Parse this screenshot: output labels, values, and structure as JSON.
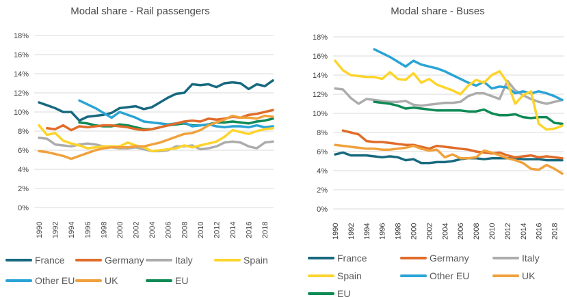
{
  "page": {
    "background": "#ffffff",
    "grid_color": "#d9d9d9",
    "axis_text_color": "#404040",
    "title_color": "#4a4a4a",
    "legend_text_color": "#595959"
  },
  "chart_data": [
    {
      "type": "line",
      "title": "Modal share - Rail passengers",
      "xlabel": "",
      "ylabel": "",
      "ylim": [
        0,
        18
      ],
      "grid": true,
      "legend_position": "bottom",
      "x": [
        1990,
        1991,
        1992,
        1993,
        1994,
        1995,
        1996,
        1997,
        1998,
        1999,
        2000,
        2001,
        2002,
        2003,
        2004,
        2005,
        2006,
        2007,
        2008,
        2009,
        2010,
        2011,
        2012,
        2013,
        2014,
        2015,
        2016,
        2017,
        2018,
        2019
      ],
      "x_tick_labels": [
        "1990",
        "1992",
        "1994",
        "1996",
        "1998",
        "2000",
        "2002",
        "2004",
        "2006",
        "2008",
        "2010",
        "2012",
        "2014",
        "2016",
        "2018"
      ],
      "y_ticks": [
        "0%",
        "2%",
        "4%",
        "6%",
        "8%",
        "10%",
        "12%",
        "14%",
        "16%",
        "18%"
      ],
      "series": [
        {
          "name": "France",
          "color": "#17697F",
          "values": [
            11.0,
            10.7,
            10.4,
            10.0,
            10.0,
            9.1,
            9.5,
            9.6,
            9.7,
            9.9,
            10.4,
            10.5,
            10.6,
            10.3,
            10.5,
            11.0,
            11.5,
            11.9,
            12.0,
            12.9,
            12.8,
            12.9,
            12.6,
            13.0,
            13.1,
            13.0,
            12.4,
            12.9,
            12.7,
            13.3
          ]
        },
        {
          "name": "Germany",
          "color": "#E06C2A",
          "values": [
            null,
            8.3,
            8.2,
            8.6,
            8.1,
            8.5,
            8.4,
            8.5,
            8.6,
            8.6,
            8.5,
            8.4,
            8.2,
            8.1,
            8.2,
            8.4,
            8.6,
            8.8,
            9.0,
            9.1,
            9.0,
            9.3,
            9.2,
            9.3,
            9.5,
            9.4,
            9.7,
            9.8,
            10.0,
            10.2
          ]
        },
        {
          "name": "Italy",
          "color": "#ACACAC",
          "values": [
            7.3,
            7.2,
            6.6,
            6.5,
            6.4,
            6.6,
            6.7,
            6.6,
            6.4,
            6.3,
            6.2,
            6.2,
            6.3,
            6.1,
            5.9,
            5.9,
            6.0,
            6.4,
            6.4,
            6.5,
            6.1,
            6.2,
            6.4,
            6.8,
            6.9,
            6.8,
            6.4,
            6.2,
            6.8,
            6.9
          ]
        },
        {
          "name": "Spain",
          "color": "#FDD42C",
          "values": [
            8.6,
            7.6,
            7.8,
            7.0,
            6.7,
            6.5,
            6.2,
            6.3,
            6.4,
            6.4,
            6.4,
            6.8,
            6.5,
            6.3,
            5.9,
            6.0,
            6.1,
            6.2,
            6.5,
            6.3,
            6.5,
            6.7,
            6.9,
            7.4,
            8.1,
            7.9,
            7.7,
            8.0,
            8.2,
            8.3
          ]
        },
        {
          "name": "Other EU",
          "color": "#2AA4D5",
          "values": [
            null,
            null,
            null,
            null,
            null,
            11.2,
            10.8,
            10.4,
            9.9,
            9.4,
            10.0,
            9.7,
            9.4,
            9.0,
            8.9,
            8.8,
            8.7,
            8.8,
            8.9,
            8.5,
            8.6,
            8.7,
            8.5,
            8.4,
            8.5,
            8.5,
            8.4,
            8.6,
            8.4,
            8.5
          ]
        },
        {
          "name": "UK",
          "color": "#F0A13C",
          "values": [
            5.9,
            5.8,
            5.6,
            5.4,
            5.1,
            5.4,
            5.7,
            6.0,
            6.2,
            6.3,
            6.3,
            6.3,
            6.4,
            6.4,
            6.6,
            6.8,
            7.1,
            7.4,
            7.7,
            7.8,
            8.1,
            8.6,
            8.9,
            9.2,
            9.6,
            9.4,
            9.4,
            9.3,
            9.6,
            9.5
          ]
        },
        {
          "name": "EU",
          "color": "#0F8A55",
          "values": [
            null,
            null,
            null,
            null,
            null,
            8.9,
            8.8,
            8.6,
            8.5,
            8.5,
            8.7,
            8.6,
            8.4,
            8.2,
            8.2,
            8.4,
            8.6,
            8.7,
            8.8,
            8.6,
            8.6,
            8.7,
            8.9,
            8.9,
            9.0,
            8.9,
            8.8,
            9.0,
            9.1,
            9.3
          ]
        }
      ]
    },
    {
      "type": "line",
      "title": "Modal share - Buses",
      "xlabel": "",
      "ylabel": "",
      "ylim": [
        0,
        18
      ],
      "grid": true,
      "legend_position": "bottom",
      "x": [
        1990,
        1991,
        1992,
        1993,
        1994,
        1995,
        1996,
        1997,
        1998,
        1999,
        2000,
        2001,
        2002,
        2003,
        2004,
        2005,
        2006,
        2007,
        2008,
        2009,
        2010,
        2011,
        2012,
        2013,
        2014,
        2015,
        2016,
        2017,
        2018,
        2019
      ],
      "x_tick_labels": [
        "1990",
        "1992",
        "1994",
        "1996",
        "1998",
        "2000",
        "2002",
        "2004",
        "2006",
        "2008",
        "2010",
        "2012",
        "2014",
        "2016",
        "2018"
      ],
      "y_ticks": [
        "0%",
        "2%",
        "4%",
        "6%",
        "8%",
        "10%",
        "12%",
        "14%",
        "16%",
        "18%"
      ],
      "series": [
        {
          "name": "France",
          "color": "#17697F",
          "values": [
            5.7,
            5.9,
            5.6,
            5.6,
            5.6,
            5.5,
            5.4,
            5.5,
            5.4,
            5.1,
            5.2,
            4.8,
            4.8,
            4.9,
            4.9,
            5.0,
            5.2,
            5.3,
            5.3,
            5.2,
            5.3,
            5.3,
            5.3,
            5.3,
            5.2,
            5.2,
            5.2,
            5.1,
            5.1,
            5.1
          ]
        },
        {
          "name": "Germany",
          "color": "#E06C2A",
          "values": [
            null,
            8.2,
            8.0,
            7.8,
            7.1,
            7.0,
            7.0,
            6.9,
            6.8,
            6.7,
            6.7,
            6.5,
            6.3,
            6.6,
            6.5,
            6.4,
            6.3,
            6.2,
            6.0,
            5.9,
            5.8,
            5.9,
            5.6,
            5.4,
            5.5,
            5.6,
            5.4,
            5.5,
            5.4,
            5.3
          ]
        },
        {
          "name": "Italy",
          "color": "#ACACAC",
          "values": [
            12.6,
            12.5,
            11.6,
            11.0,
            11.5,
            11.4,
            11.3,
            11.2,
            11.2,
            11.3,
            10.9,
            10.8,
            10.9,
            11.0,
            11.1,
            11.1,
            11.2,
            11.8,
            12.1,
            12.1,
            11.8,
            11.5,
            13.4,
            12.4,
            11.9,
            11.5,
            11.2,
            11.0,
            11.2,
            11.4
          ]
        },
        {
          "name": "Spain",
          "color": "#FDD42C",
          "values": [
            15.5,
            14.5,
            14.0,
            13.9,
            13.8,
            13.8,
            13.6,
            14.3,
            13.6,
            13.5,
            14.2,
            13.2,
            13.6,
            13.0,
            12.7,
            12.4,
            12.0,
            12.9,
            13.5,
            13.2,
            14.0,
            14.4,
            13.2,
            11.0,
            11.9,
            12.3,
            8.9,
            8.3,
            8.4,
            8.7
          ]
        },
        {
          "name": "Other EU",
          "color": "#2AA4D5",
          "values": [
            null,
            null,
            null,
            null,
            null,
            16.7,
            16.3,
            15.9,
            15.4,
            14.9,
            15.5,
            15.1,
            14.9,
            14.7,
            14.4,
            14.0,
            13.6,
            13.2,
            12.9,
            13.3,
            12.6,
            12.8,
            12.7,
            12.1,
            12.3,
            12.1,
            12.3,
            12.1,
            11.8,
            11.4
          ]
        },
        {
          "name": "UK",
          "color": "#F0A13C",
          "values": [
            6.7,
            6.6,
            6.5,
            6.4,
            6.3,
            6.3,
            6.2,
            6.2,
            6.3,
            6.4,
            6.6,
            6.3,
            6.1,
            6.2,
            5.4,
            5.7,
            5.3,
            5.3,
            5.4,
            6.1,
            5.9,
            5.6,
            5.3,
            5.1,
            4.8,
            4.2,
            4.1,
            4.6,
            4.2,
            3.7
          ]
        },
        {
          "name": "EU",
          "color": "#0F8A55",
          "values": [
            null,
            null,
            null,
            null,
            null,
            11.2,
            11.1,
            11.0,
            10.8,
            10.5,
            10.6,
            10.5,
            10.4,
            10.3,
            10.3,
            10.3,
            10.3,
            10.2,
            10.2,
            10.4,
            10.0,
            9.8,
            9.8,
            9.9,
            9.6,
            9.5,
            9.6,
            9.6,
            9.0,
            8.9
          ]
        }
      ]
    }
  ]
}
